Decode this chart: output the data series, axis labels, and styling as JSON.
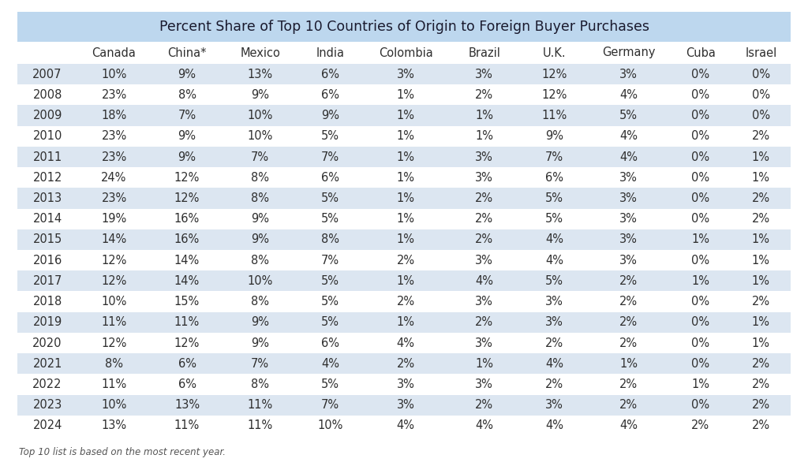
{
  "title": "Percent Share of Top 10 Countries of Origin to Foreign Buyer Purchases",
  "columns": [
    "",
    "Canada",
    "China*",
    "Mexico",
    "India",
    "Colombia",
    "Brazil",
    "U.K.",
    "Germany",
    "Cuba",
    "Israel"
  ],
  "rows": [
    [
      "2007",
      "10%",
      "9%",
      "13%",
      "6%",
      "3%",
      "3%",
      "12%",
      "3%",
      "0%",
      "0%"
    ],
    [
      "2008",
      "23%",
      "8%",
      "9%",
      "6%",
      "1%",
      "2%",
      "12%",
      "4%",
      "0%",
      "0%"
    ],
    [
      "2009",
      "18%",
      "7%",
      "10%",
      "9%",
      "1%",
      "1%",
      "11%",
      "5%",
      "0%",
      "0%"
    ],
    [
      "2010",
      "23%",
      "9%",
      "10%",
      "5%",
      "1%",
      "1%",
      "9%",
      "4%",
      "0%",
      "2%"
    ],
    [
      "2011",
      "23%",
      "9%",
      "7%",
      "7%",
      "1%",
      "3%",
      "7%",
      "4%",
      "0%",
      "1%"
    ],
    [
      "2012",
      "24%",
      "12%",
      "8%",
      "6%",
      "1%",
      "3%",
      "6%",
      "3%",
      "0%",
      "1%"
    ],
    [
      "2013",
      "23%",
      "12%",
      "8%",
      "5%",
      "1%",
      "2%",
      "5%",
      "3%",
      "0%",
      "2%"
    ],
    [
      "2014",
      "19%",
      "16%",
      "9%",
      "5%",
      "1%",
      "2%",
      "5%",
      "3%",
      "0%",
      "2%"
    ],
    [
      "2015",
      "14%",
      "16%",
      "9%",
      "8%",
      "1%",
      "2%",
      "4%",
      "3%",
      "1%",
      "1%"
    ],
    [
      "2016",
      "12%",
      "14%",
      "8%",
      "7%",
      "2%",
      "3%",
      "4%",
      "3%",
      "0%",
      "1%"
    ],
    [
      "2017",
      "12%",
      "14%",
      "10%",
      "5%",
      "1%",
      "4%",
      "5%",
      "2%",
      "1%",
      "1%"
    ],
    [
      "2018",
      "10%",
      "15%",
      "8%",
      "5%",
      "2%",
      "3%",
      "3%",
      "2%",
      "0%",
      "2%"
    ],
    [
      "2019",
      "11%",
      "11%",
      "9%",
      "5%",
      "1%",
      "2%",
      "3%",
      "2%",
      "0%",
      "1%"
    ],
    [
      "2020",
      "12%",
      "12%",
      "9%",
      "6%",
      "4%",
      "3%",
      "2%",
      "2%",
      "0%",
      "1%"
    ],
    [
      "2021",
      "8%",
      "6%",
      "7%",
      "4%",
      "2%",
      "1%",
      "4%",
      "1%",
      "0%",
      "2%"
    ],
    [
      "2022",
      "11%",
      "6%",
      "8%",
      "5%",
      "3%",
      "3%",
      "2%",
      "2%",
      "1%",
      "2%"
    ],
    [
      "2023",
      "10%",
      "13%",
      "11%",
      "7%",
      "3%",
      "2%",
      "3%",
      "2%",
      "0%",
      "2%"
    ],
    [
      "2024",
      "13%",
      "11%",
      "11%",
      "10%",
      "4%",
      "4%",
      "4%",
      "4%",
      "2%",
      "2%"
    ]
  ],
  "title_bg": "#bdd7ee",
  "header_bg": "#ffffff",
  "row_bg_odd": "#dce6f1",
  "row_bg_even": "#ffffff",
  "outer_bg": "#ffffff",
  "text_color": "#2f2f2f",
  "title_color": "#1a1a2e",
  "font_size": 10.5,
  "title_font_size": 12.5,
  "header_font_size": 10.5,
  "footer_text": "Top 10 list is based on the most recent year.",
  "footer_font_size": 8.5
}
